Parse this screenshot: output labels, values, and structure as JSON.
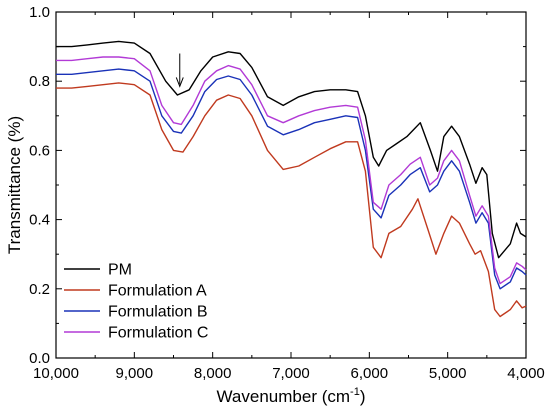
{
  "chart_data": {
    "type": "line",
    "title": "",
    "xlabel": "Wavenumber (cm",
    "xlabel_sup": "-1",
    "xlabel_end": ")",
    "ylabel": "Transmittance (%)",
    "xlim": [
      10000,
      4000
    ],
    "ylim": [
      0.0,
      1.0
    ],
    "x_reversed": true,
    "x_ticks": [
      10000,
      9000,
      8000,
      7000,
      6000,
      5000,
      4000
    ],
    "x_tick_labels": [
      "10,000",
      "9,000",
      "8,000",
      "7,000",
      "6,000",
      "5,000",
      "4,000"
    ],
    "y_ticks": [
      0.0,
      0.2,
      0.4,
      0.6,
      0.8,
      1.0
    ],
    "y_tick_labels": [
      "0.0",
      "0.2",
      "0.4",
      "0.6",
      "0.8",
      "1.0"
    ],
    "grid": false,
    "legend_position": "bottom-left",
    "annotation": {
      "type": "arrow",
      "x": 8420,
      "y_from": 0.88,
      "y_to": 0.785
    },
    "series": [
      {
        "name": "PM",
        "color": "#000000",
        "points": [
          [
            10000,
            0.9
          ],
          [
            9800,
            0.9
          ],
          [
            9600,
            0.905
          ],
          [
            9400,
            0.91
          ],
          [
            9200,
            0.915
          ],
          [
            9000,
            0.91
          ],
          [
            8800,
            0.88
          ],
          [
            8600,
            0.8
          ],
          [
            8450,
            0.76
          ],
          [
            8300,
            0.775
          ],
          [
            8150,
            0.83
          ],
          [
            8000,
            0.87
          ],
          [
            7800,
            0.885
          ],
          [
            7650,
            0.88
          ],
          [
            7500,
            0.84
          ],
          [
            7300,
            0.755
          ],
          [
            7100,
            0.73
          ],
          [
            6900,
            0.755
          ],
          [
            6700,
            0.77
          ],
          [
            6500,
            0.775
          ],
          [
            6300,
            0.775
          ],
          [
            6150,
            0.77
          ],
          [
            6050,
            0.7
          ],
          [
            5950,
            0.58
          ],
          [
            5880,
            0.555
          ],
          [
            5780,
            0.6
          ],
          [
            5650,
            0.62
          ],
          [
            5520,
            0.64
          ],
          [
            5350,
            0.68
          ],
          [
            5220,
            0.6
          ],
          [
            5130,
            0.54
          ],
          [
            5050,
            0.64
          ],
          [
            4950,
            0.67
          ],
          [
            4850,
            0.64
          ],
          [
            4720,
            0.56
          ],
          [
            4640,
            0.505
          ],
          [
            4560,
            0.55
          ],
          [
            4500,
            0.53
          ],
          [
            4430,
            0.36
          ],
          [
            4350,
            0.29
          ],
          [
            4200,
            0.33
          ],
          [
            4120,
            0.39
          ],
          [
            4070,
            0.36
          ],
          [
            4000,
            0.35
          ]
        ]
      },
      {
        "name": "Formulation A",
        "color": "#c03a1f",
        "points": [
          [
            10000,
            0.78
          ],
          [
            9800,
            0.78
          ],
          [
            9600,
            0.785
          ],
          [
            9400,
            0.79
          ],
          [
            9200,
            0.795
          ],
          [
            9000,
            0.79
          ],
          [
            8800,
            0.76
          ],
          [
            8650,
            0.66
          ],
          [
            8500,
            0.6
          ],
          [
            8380,
            0.595
          ],
          [
            8250,
            0.64
          ],
          [
            8100,
            0.7
          ],
          [
            7950,
            0.745
          ],
          [
            7800,
            0.76
          ],
          [
            7650,
            0.75
          ],
          [
            7500,
            0.7
          ],
          [
            7300,
            0.6
          ],
          [
            7100,
            0.545
          ],
          [
            6900,
            0.555
          ],
          [
            6700,
            0.58
          ],
          [
            6500,
            0.605
          ],
          [
            6300,
            0.625
          ],
          [
            6150,
            0.625
          ],
          [
            6050,
            0.54
          ],
          [
            5950,
            0.32
          ],
          [
            5850,
            0.29
          ],
          [
            5750,
            0.36
          ],
          [
            5600,
            0.38
          ],
          [
            5450,
            0.43
          ],
          [
            5380,
            0.46
          ],
          [
            5250,
            0.37
          ],
          [
            5150,
            0.3
          ],
          [
            5050,
            0.36
          ],
          [
            4950,
            0.41
          ],
          [
            4850,
            0.39
          ],
          [
            4720,
            0.33
          ],
          [
            4650,
            0.3
          ],
          [
            4580,
            0.31
          ],
          [
            4480,
            0.25
          ],
          [
            4400,
            0.14
          ],
          [
            4330,
            0.12
          ],
          [
            4200,
            0.14
          ],
          [
            4120,
            0.165
          ],
          [
            4050,
            0.145
          ],
          [
            4000,
            0.15
          ]
        ]
      },
      {
        "name": "Formulation B",
        "color": "#1a32b8",
        "points": [
          [
            10000,
            0.82
          ],
          [
            9800,
            0.82
          ],
          [
            9600,
            0.825
          ],
          [
            9400,
            0.83
          ],
          [
            9200,
            0.835
          ],
          [
            9000,
            0.83
          ],
          [
            8800,
            0.8
          ],
          [
            8650,
            0.7
          ],
          [
            8500,
            0.655
          ],
          [
            8400,
            0.65
          ],
          [
            8250,
            0.7
          ],
          [
            8100,
            0.77
          ],
          [
            7950,
            0.805
          ],
          [
            7800,
            0.815
          ],
          [
            7650,
            0.805
          ],
          [
            7500,
            0.76
          ],
          [
            7300,
            0.67
          ],
          [
            7100,
            0.645
          ],
          [
            6900,
            0.66
          ],
          [
            6700,
            0.68
          ],
          [
            6500,
            0.69
          ],
          [
            6300,
            0.7
          ],
          [
            6150,
            0.695
          ],
          [
            6050,
            0.6
          ],
          [
            5950,
            0.43
          ],
          [
            5850,
            0.405
          ],
          [
            5750,
            0.47
          ],
          [
            5600,
            0.5
          ],
          [
            5480,
            0.53
          ],
          [
            5350,
            0.55
          ],
          [
            5230,
            0.48
          ],
          [
            5130,
            0.5
          ],
          [
            5050,
            0.54
          ],
          [
            4950,
            0.57
          ],
          [
            4850,
            0.54
          ],
          [
            4720,
            0.45
          ],
          [
            4640,
            0.39
          ],
          [
            4560,
            0.42
          ],
          [
            4480,
            0.39
          ],
          [
            4400,
            0.24
          ],
          [
            4330,
            0.2
          ],
          [
            4200,
            0.22
          ],
          [
            4120,
            0.26
          ],
          [
            4050,
            0.25
          ],
          [
            4000,
            0.24
          ]
        ]
      },
      {
        "name": "Formulation C",
        "color": "#b23ad6",
        "points": [
          [
            10000,
            0.86
          ],
          [
            9800,
            0.86
          ],
          [
            9600,
            0.865
          ],
          [
            9400,
            0.87
          ],
          [
            9200,
            0.87
          ],
          [
            9000,
            0.865
          ],
          [
            8800,
            0.83
          ],
          [
            8650,
            0.73
          ],
          [
            8500,
            0.68
          ],
          [
            8400,
            0.675
          ],
          [
            8250,
            0.73
          ],
          [
            8100,
            0.8
          ],
          [
            7950,
            0.83
          ],
          [
            7800,
            0.845
          ],
          [
            7650,
            0.835
          ],
          [
            7500,
            0.79
          ],
          [
            7300,
            0.7
          ],
          [
            7100,
            0.68
          ],
          [
            6900,
            0.7
          ],
          [
            6700,
            0.715
          ],
          [
            6500,
            0.725
          ],
          [
            6300,
            0.73
          ],
          [
            6150,
            0.725
          ],
          [
            6050,
            0.63
          ],
          [
            5950,
            0.45
          ],
          [
            5850,
            0.43
          ],
          [
            5750,
            0.5
          ],
          [
            5600,
            0.53
          ],
          [
            5480,
            0.56
          ],
          [
            5350,
            0.58
          ],
          [
            5230,
            0.5
          ],
          [
            5130,
            0.52
          ],
          [
            5050,
            0.57
          ],
          [
            4950,
            0.6
          ],
          [
            4850,
            0.57
          ],
          [
            4720,
            0.47
          ],
          [
            4640,
            0.41
          ],
          [
            4560,
            0.44
          ],
          [
            4480,
            0.41
          ],
          [
            4400,
            0.26
          ],
          [
            4330,
            0.215
          ],
          [
            4200,
            0.235
          ],
          [
            4120,
            0.275
          ],
          [
            4050,
            0.265
          ],
          [
            4000,
            0.255
          ]
        ]
      }
    ]
  }
}
